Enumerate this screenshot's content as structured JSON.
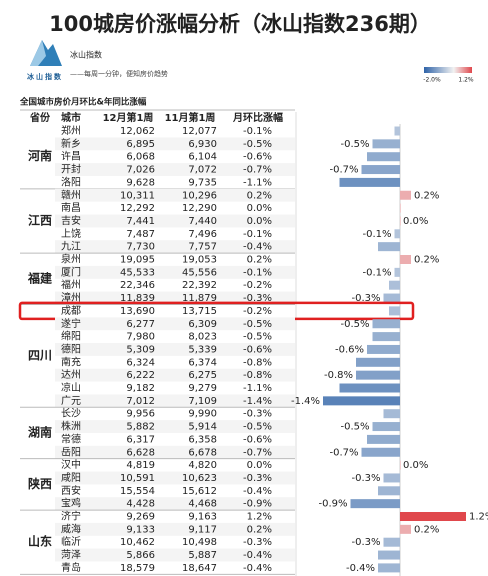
{
  "header": {
    "title": "100城房价涨幅分析（冰山指数236期）",
    "brand": "冰山指数",
    "logo_text": "冰山指数",
    "slogan": "——每周一分钟，便知房价趋势"
  },
  "legend": {
    "min": -2.0,
    "min_label": "-2.0%",
    "max": 1.2,
    "max_label": "1.2%",
    "neg_color": "#2f63a8",
    "pos_color": "#e0474c"
  },
  "table": {
    "caption": "全国城市房价月环比&年同比涨幅",
    "columns": [
      "省份",
      "城市",
      "12月第1周",
      "11月第1周",
      "月环比涨幅"
    ],
    "groups": [
      {
        "province": "河南",
        "rows": [
          {
            "city": "郑州",
            "dec": "12,062",
            "nov": "12,077",
            "change": "-0.1%",
            "bar": -0.1,
            "show_label": false
          },
          {
            "city": "新乡",
            "dec": "6,895",
            "nov": "6,930",
            "change": "-0.5%",
            "bar": -0.5,
            "show_label": true
          },
          {
            "city": "许昌",
            "dec": "6,068",
            "nov": "6,104",
            "change": "-0.6%",
            "bar": -0.6,
            "show_label": false
          },
          {
            "city": "开封",
            "dec": "7,026",
            "nov": "7,072",
            "change": "-0.7%",
            "bar": -0.7,
            "show_label": true
          },
          {
            "city": "洛阳",
            "dec": "9,628",
            "nov": "9,735",
            "change": "-1.1%",
            "bar": -1.1,
            "show_label": false
          }
        ]
      },
      {
        "province": "江西",
        "rows": [
          {
            "city": "赣州",
            "dec": "10,311",
            "nov": "10,296",
            "change": "0.2%",
            "bar": 0.2,
            "show_label": true
          },
          {
            "city": "南昌",
            "dec": "12,292",
            "nov": "12,290",
            "change": "0.0%",
            "bar": 0.0,
            "show_label": false
          },
          {
            "city": "吉安",
            "dec": "7,441",
            "nov": "7,440",
            "change": "0.0%",
            "bar": 0.0,
            "show_label": true
          },
          {
            "city": "上饶",
            "dec": "7,487",
            "nov": "7,496",
            "change": "-0.1%",
            "bar": -0.1,
            "show_label": true
          },
          {
            "city": "九江",
            "dec": "7,730",
            "nov": "7,757",
            "change": "-0.4%",
            "bar": -0.4,
            "show_label": false
          }
        ]
      },
      {
        "province": "福建",
        "rows": [
          {
            "city": "泉州",
            "dec": "19,095",
            "nov": "19,053",
            "change": "0.2%",
            "bar": 0.2,
            "show_label": true
          },
          {
            "city": "厦门",
            "dec": "45,533",
            "nov": "45,556",
            "change": "-0.1%",
            "bar": -0.1,
            "show_label": true
          },
          {
            "city": "福州",
            "dec": "22,346",
            "nov": "22,392",
            "change": "-0.2%",
            "bar": -0.2,
            "show_label": false
          },
          {
            "city": "漳州",
            "dec": "11,839",
            "nov": "11,879",
            "change": "-0.3%",
            "bar": -0.3,
            "show_label": true
          }
        ]
      },
      {
        "province": "四川",
        "rows": [
          {
            "city": "成都",
            "dec": "13,690",
            "nov": "13,715",
            "change": "-0.2%",
            "bar": -0.2,
            "show_label": false,
            "highlighted": true
          },
          {
            "city": "遂宁",
            "dec": "6,277",
            "nov": "6,309",
            "change": "-0.5%",
            "bar": -0.5,
            "show_label": true
          },
          {
            "city": "绵阳",
            "dec": "7,980",
            "nov": "8,023",
            "change": "-0.5%",
            "bar": -0.5,
            "show_label": false
          },
          {
            "city": "德阳",
            "dec": "5,309",
            "nov": "5,339",
            "change": "-0.6%",
            "bar": -0.6,
            "show_label": true
          },
          {
            "city": "南充",
            "dec": "6,324",
            "nov": "6,374",
            "change": "-0.8%",
            "bar": -0.8,
            "show_label": false
          },
          {
            "city": "达州",
            "dec": "6,222",
            "nov": "6,275",
            "change": "-0.8%",
            "bar": -0.8,
            "show_label": true
          },
          {
            "city": "凉山",
            "dec": "9,182",
            "nov": "9,279",
            "change": "-1.1%",
            "bar": -1.1,
            "show_label": false
          },
          {
            "city": "广元",
            "dec": "7,012",
            "nov": "7,109",
            "change": "-1.4%",
            "bar": -1.4,
            "show_label": true
          }
        ]
      },
      {
        "province": "湖南",
        "rows": [
          {
            "city": "长沙",
            "dec": "9,956",
            "nov": "9,990",
            "change": "-0.3%",
            "bar": -0.3,
            "show_label": false
          },
          {
            "city": "株洲",
            "dec": "5,882",
            "nov": "5,914",
            "change": "-0.5%",
            "bar": -0.5,
            "show_label": true
          },
          {
            "city": "常德",
            "dec": "6,317",
            "nov": "6,358",
            "change": "-0.6%",
            "bar": -0.6,
            "show_label": false
          },
          {
            "city": "岳阳",
            "dec": "6,628",
            "nov": "6,678",
            "change": "-0.7%",
            "bar": -0.7,
            "show_label": true
          }
        ]
      },
      {
        "province": "陕西",
        "rows": [
          {
            "city": "汉中",
            "dec": "4,819",
            "nov": "4,820",
            "change": "0.0%",
            "bar": 0.0,
            "show_label": true
          },
          {
            "city": "咸阳",
            "dec": "10,591",
            "nov": "10,623",
            "change": "-0.3%",
            "bar": -0.3,
            "show_label": true
          },
          {
            "city": "西安",
            "dec": "15,554",
            "nov": "15,612",
            "change": "-0.4%",
            "bar": -0.4,
            "show_label": false
          },
          {
            "city": "宝鸡",
            "dec": "4,428",
            "nov": "4,468",
            "change": "-0.9%",
            "bar": -0.9,
            "show_label": true
          }
        ]
      },
      {
        "province": "山东",
        "rows": [
          {
            "city": "济宁",
            "dec": "9,269",
            "nov": "9,163",
            "change": "1.2%",
            "bar": 1.2,
            "show_label": true
          },
          {
            "city": "威海",
            "dec": "9,133",
            "nov": "9,117",
            "change": "0.2%",
            "bar": 0.2,
            "show_label": true
          },
          {
            "city": "临沂",
            "dec": "10,462",
            "nov": "10,498",
            "change": "-0.3%",
            "bar": -0.3,
            "show_label": true
          },
          {
            "city": "菏泽",
            "dec": "5,866",
            "nov": "5,887",
            "change": "-0.4%",
            "bar": -0.4,
            "show_label": false
          },
          {
            "city": "青岛",
            "dec": "18,579",
            "nov": "18,647",
            "change": "-0.4%",
            "bar": -0.4,
            "show_label": true
          }
        ]
      }
    ]
  }
}
